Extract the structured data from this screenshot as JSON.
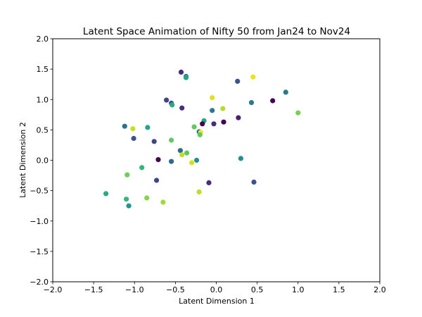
{
  "chart_data": {
    "type": "scatter",
    "title": "Latent Space Animation of Nifty 50 from Jan24 to Nov24",
    "xlabel": "Latent Dimension 1",
    "ylabel": "Latent Dimension 2",
    "xlim": [
      -2.0,
      2.0
    ],
    "ylim": [
      -2.0,
      2.0
    ],
    "xticks": [
      "−2.0",
      "−1.5",
      "−1.0",
      "−0.5",
      "0.0",
      "0.5",
      "1.0",
      "1.5",
      "2.0"
    ],
    "xtick_values": [
      -2.0,
      -1.5,
      -1.0,
      -0.5,
      0.0,
      0.5,
      1.0,
      1.5,
      2.0
    ],
    "yticks": [
      "−2.0",
      "−1.5",
      "−1.0",
      "−0.5",
      "0.0",
      "0.5",
      "1.0",
      "1.5",
      "2.0"
    ],
    "ytick_values": [
      -2.0,
      -1.5,
      -1.0,
      -0.5,
      0.0,
      0.5,
      1.0,
      1.5,
      2.0
    ],
    "grid": false,
    "colormap": "viridis",
    "points": [
      {
        "x": -0.43,
        "y": 1.45,
        "color": "#472d7b"
      },
      {
        "x": -0.37,
        "y": 1.38,
        "color": "#2a788e"
      },
      {
        "x": -0.37,
        "y": 1.36,
        "color": "#22a884"
      },
      {
        "x": 0.45,
        "y": 1.37,
        "color": "#e8e419"
      },
      {
        "x": 0.26,
        "y": 1.3,
        "color": "#3b528b"
      },
      {
        "x": 0.85,
        "y": 1.12,
        "color": "#2a788e"
      },
      {
        "x": -0.05,
        "y": 1.03,
        "color": "#e0e21c"
      },
      {
        "x": -0.61,
        "y": 0.99,
        "color": "#414487"
      },
      {
        "x": 0.69,
        "y": 0.98,
        "color": "#440154"
      },
      {
        "x": -0.55,
        "y": 0.94,
        "color": "#3b528b"
      },
      {
        "x": -0.54,
        "y": 0.91,
        "color": "#27ad81"
      },
      {
        "x": 0.43,
        "y": 0.95,
        "color": "#2a788e"
      },
      {
        "x": -0.42,
        "y": 0.86,
        "color": "#472d7b"
      },
      {
        "x": -0.05,
        "y": 0.82,
        "color": "#2a788e"
      },
      {
        "x": 0.08,
        "y": 0.85,
        "color": "#b5de2b"
      },
      {
        "x": 1.0,
        "y": 0.78,
        "color": "#7ad151"
      },
      {
        "x": 0.27,
        "y": 0.7,
        "color": "#482173"
      },
      {
        "x": -0.15,
        "y": 0.65,
        "color": "#22a884"
      },
      {
        "x": 0.09,
        "y": 0.63,
        "color": "#440154"
      },
      {
        "x": -0.17,
        "y": 0.6,
        "color": "#440154"
      },
      {
        "x": -0.03,
        "y": 0.6,
        "color": "#472d7b"
      },
      {
        "x": -1.12,
        "y": 0.56,
        "color": "#2c728e"
      },
      {
        "x": -0.84,
        "y": 0.54,
        "color": "#22a884"
      },
      {
        "x": -0.27,
        "y": 0.55,
        "color": "#5ec962"
      },
      {
        "x": -1.02,
        "y": 0.52,
        "color": "#c8e020"
      },
      {
        "x": -0.21,
        "y": 0.47,
        "color": "#2c728e"
      },
      {
        "x": -0.19,
        "y": 0.46,
        "color": "#fde725"
      },
      {
        "x": -0.2,
        "y": 0.42,
        "color": "#5ec962"
      },
      {
        "x": -1.01,
        "y": 0.36,
        "color": "#3b528b"
      },
      {
        "x": -0.55,
        "y": 0.33,
        "color": "#5ec962"
      },
      {
        "x": -0.76,
        "y": 0.31,
        "color": "#414487"
      },
      {
        "x": -0.44,
        "y": 0.16,
        "color": "#31688e"
      },
      {
        "x": -0.36,
        "y": 0.12,
        "color": "#5ec962"
      },
      {
        "x": -0.42,
        "y": 0.09,
        "color": "#bddf26"
      },
      {
        "x": 0.3,
        "y": 0.03,
        "color": "#21918c"
      },
      {
        "x": -0.71,
        "y": 0.01,
        "color": "#440154"
      },
      {
        "x": -0.24,
        "y": 0.0,
        "color": "#21918c"
      },
      {
        "x": -0.55,
        "y": -0.02,
        "color": "#31688e"
      },
      {
        "x": -0.3,
        "y": -0.04,
        "color": "#d2e21b"
      },
      {
        "x": -0.91,
        "y": -0.12,
        "color": "#35b779"
      },
      {
        "x": -1.09,
        "y": -0.24,
        "color": "#6ccd5a"
      },
      {
        "x": -0.73,
        "y": -0.33,
        "color": "#414487"
      },
      {
        "x": -0.09,
        "y": -0.37,
        "color": "#472d7b"
      },
      {
        "x": 0.46,
        "y": -0.36,
        "color": "#3b528b"
      },
      {
        "x": -0.21,
        "y": -0.52,
        "color": "#bddf26"
      },
      {
        "x": -1.35,
        "y": -0.55,
        "color": "#27ad81"
      },
      {
        "x": -1.1,
        "y": -0.64,
        "color": "#35b779"
      },
      {
        "x": -0.85,
        "y": -0.62,
        "color": "#86d549"
      },
      {
        "x": -0.65,
        "y": -0.69,
        "color": "#9fda3a"
      },
      {
        "x": -1.07,
        "y": -0.75,
        "color": "#1f988b"
      }
    ]
  }
}
